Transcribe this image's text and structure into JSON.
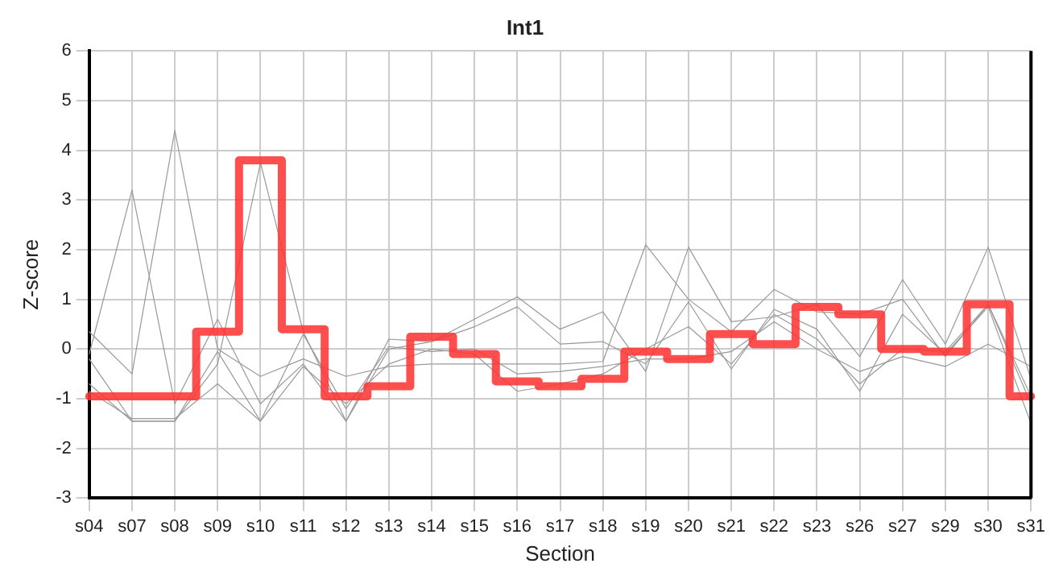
{
  "chart_data": {
    "type": "line",
    "title": "Int1",
    "xlabel": "Section",
    "ylabel": "Z-score",
    "categories": [
      "s04",
      "s07",
      "s08",
      "s09",
      "s10",
      "s11",
      "s12",
      "s13",
      "s14",
      "s15",
      "s16",
      "s17",
      "s18",
      "s19",
      "s20",
      "s21",
      "s22",
      "s23",
      "s26",
      "s27",
      "s29",
      "s30",
      "s31"
    ],
    "ylim": [
      -3,
      6
    ],
    "yticks": [
      -3,
      -2,
      -1,
      0,
      1,
      2,
      3,
      4,
      5,
      6
    ],
    "grid": true,
    "legend": false,
    "marker": "none",
    "line_style": "solid",
    "series": [
      {
        "color": "#999999",
        "values": [
          -0.1,
          3.2,
          -1.1,
          0.6,
          -1.1,
          -0.3,
          -1.45,
          0.2,
          0.15,
          0.6,
          1.05,
          0.4,
          0.75,
          -0.45,
          2.05,
          0.55,
          0.65,
          0.9,
          -0.15,
          1.4,
          0.1,
          2.05,
          -0.6
        ]
      },
      {
        "color": "#999999",
        "values": [
          0.35,
          -0.5,
          4.4,
          0.0,
          -0.55,
          -0.2,
          -0.55,
          -0.35,
          -0.3,
          -0.3,
          -0.3,
          -0.3,
          -0.25,
          2.1,
          1.0,
          0.35,
          1.2,
          0.75,
          0.7,
          1.0,
          -0.15,
          0.9,
          -0.95
        ]
      },
      {
        "color": "#999999",
        "values": [
          -0.7,
          -1.45,
          -1.45,
          -0.3,
          3.75,
          0.35,
          -1.45,
          0.0,
          0.15,
          0.45,
          0.85,
          0.1,
          0.15,
          -0.3,
          0.95,
          -0.4,
          0.8,
          0.4,
          -0.85,
          0.7,
          -0.1,
          0.85,
          -1.5
        ]
      },
      {
        "color": "#999999",
        "values": [
          -0.85,
          -1.4,
          -1.4,
          -0.7,
          -1.45,
          -0.35,
          -1.1,
          -0.3,
          0.0,
          -0.1,
          -0.85,
          -0.7,
          -0.5,
          0.0,
          0.45,
          -0.3,
          0.7,
          0.2,
          -0.7,
          0.0,
          -0.05,
          0.9,
          -1.1
        ]
      },
      {
        "color": "#999999",
        "values": [
          -0.2,
          -1.45,
          -1.45,
          -0.05,
          -1.45,
          0.3,
          -1.2,
          0.05,
          -0.05,
          0.0,
          -0.5,
          -0.45,
          -0.35,
          -0.2,
          -0.2,
          -0.05,
          0.55,
          0.0,
          -0.45,
          -0.15,
          -0.35,
          0.1,
          -0.35
        ]
      },
      {
        "type": "step",
        "color": "#ff3333",
        "values": [
          -0.95,
          -0.95,
          -0.95,
          0.35,
          3.8,
          0.4,
          -0.95,
          -0.75,
          0.25,
          -0.1,
          -0.65,
          -0.75,
          -0.6,
          -0.05,
          -0.2,
          0.3,
          0.1,
          0.85,
          0.7,
          0.0,
          -0.05,
          0.9,
          -0.95
        ]
      }
    ]
  }
}
